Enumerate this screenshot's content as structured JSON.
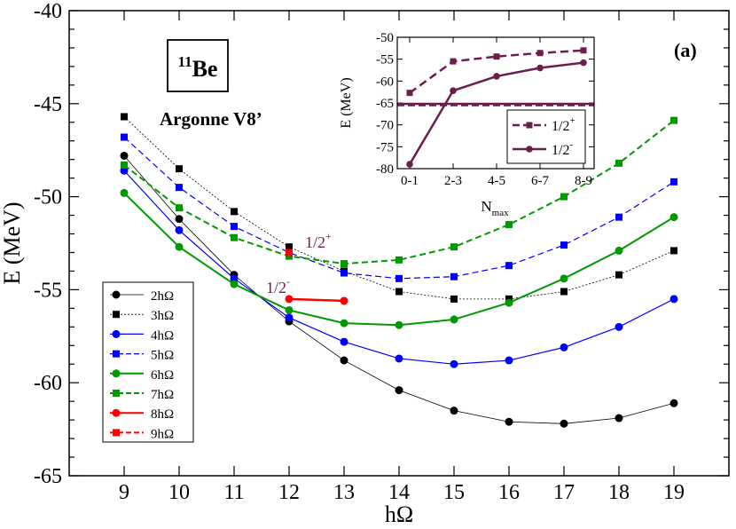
{
  "chart_data": [
    {
      "type": "line",
      "title": "",
      "xlabel": "hΩ",
      "ylabel": "E (MeV)",
      "xlim": [
        8,
        20
      ],
      "ylim": [
        -65,
        -40
      ],
      "xticks": [
        9,
        10,
        11,
        12,
        13,
        14,
        15,
        16,
        17,
        18,
        19
      ],
      "yticks": [
        -65,
        -60,
        -55,
        -50,
        -45,
        -40
      ],
      "panel_label": "(a)",
      "nucleus_label": {
        "mass": "11",
        "element": "Be"
      },
      "interaction_label": "Argonne V8’",
      "annotations": [
        {
          "base": "1/2",
          "sup": "+",
          "color": "#6b1e4e"
        },
        {
          "base": "1/2",
          "sup": "-",
          "color": "#6b1e4e"
        }
      ],
      "legend_position": "bottom-left",
      "series": [
        {
          "name": "2hΩ",
          "color": "#000000",
          "marker": "circle",
          "dashed": false,
          "width": 0.8,
          "x": [
            9,
            10,
            11,
            12,
            13,
            14,
            15,
            16,
            17,
            18,
            19
          ],
          "values": [
            -47.8,
            -51.2,
            -54.2,
            -56.7,
            -58.8,
            -60.4,
            -61.5,
            -62.1,
            -62.2,
            -61.9,
            -61.1
          ]
        },
        {
          "name": "3hΩ",
          "color": "#000000",
          "marker": "square",
          "dashed": true,
          "width": 0.8,
          "x": [
            9,
            10,
            11,
            12,
            13,
            14,
            15,
            16,
            17,
            18,
            19
          ],
          "values": [
            -45.7,
            -48.5,
            -50.8,
            -52.7,
            -54.0,
            -55.1,
            -55.5,
            -55.5,
            -55.1,
            -54.2,
            -52.9
          ]
        },
        {
          "name": "4hΩ",
          "color": "#0000ff",
          "marker": "circle",
          "dashed": false,
          "width": 1.2,
          "x": [
            9,
            10,
            11,
            12,
            13,
            14,
            15,
            16,
            17,
            18,
            19
          ],
          "values": [
            -48.6,
            -51.8,
            -54.4,
            -56.5,
            -57.8,
            -58.7,
            -59.0,
            -58.8,
            -58.1,
            -57.0,
            -55.5
          ]
        },
        {
          "name": "5hΩ",
          "color": "#0000ff",
          "marker": "square",
          "dashed": true,
          "width": 1.2,
          "x": [
            9,
            10,
            11,
            12,
            13,
            14,
            15,
            16,
            17,
            18,
            19
          ],
          "values": [
            -46.8,
            -49.5,
            -51.6,
            -53.0,
            -54.1,
            -54.4,
            -54.3,
            -53.7,
            -52.6,
            -51.1,
            -49.2
          ]
        },
        {
          "name": "6hΩ",
          "color": "#009900",
          "marker": "circle",
          "dashed": false,
          "width": 2,
          "x": [
            9,
            10,
            11,
            12,
            13,
            14,
            15,
            16,
            17,
            18,
            19
          ],
          "values": [
            -49.8,
            -52.7,
            -54.7,
            -56.1,
            -56.8,
            -56.9,
            -56.6,
            -55.7,
            -54.4,
            -52.9,
            -51.1
          ]
        },
        {
          "name": "7hΩ",
          "color": "#009900",
          "marker": "square",
          "dashed": true,
          "width": 2,
          "x": [
            9,
            10,
            11,
            12,
            13,
            14,
            15,
            16,
            17,
            18,
            19
          ],
          "values": [
            -48.3,
            -50.6,
            -52.2,
            -53.2,
            -53.6,
            -53.4,
            -52.7,
            -51.5,
            -50.0,
            -48.2,
            -45.9
          ]
        },
        {
          "name": "8hΩ",
          "color": "#ff0000",
          "marker": "circle",
          "dashed": false,
          "width": 2.5,
          "x": [
            12,
            13
          ],
          "values": [
            -55.5,
            -55.6
          ]
        },
        {
          "name": "9hΩ",
          "color": "#ff0000",
          "marker": "square",
          "dashed": true,
          "width": 2.5,
          "x": [
            12
          ],
          "values": [
            -53.0
          ]
        }
      ]
    },
    {
      "type": "line",
      "title": "",
      "xlabel": "N",
      "xlabel_sub": "max",
      "ylabel": "E (MeV)",
      "ylim": [
        -80,
        -50
      ],
      "categories": [
        "0-1",
        "2-3",
        "4-5",
        "6-7",
        "8-9"
      ],
      "yticks": [
        -80,
        -75,
        -70,
        -65,
        -60,
        -55,
        -50
      ],
      "legend_position": "bottom-right",
      "series": [
        {
          "name": "1/2",
          "sup": "+",
          "color": "#6b1e4e",
          "marker": "square",
          "dashed": true,
          "values": [
            -62.7,
            -55.5,
            -54.4,
            -53.6,
            -53.0
          ]
        },
        {
          "name": "1/2",
          "sup": "-",
          "color": "#6b1e4e",
          "marker": "circle",
          "dashed": false,
          "values": [
            -79.0,
            -62.2,
            -58.9,
            -57.0,
            -55.8
          ]
        }
      ],
      "reference_lines": [
        {
          "value": -65.2,
          "dashed": false,
          "color": "#6b1e4e"
        },
        {
          "value": -65.5,
          "dashed": true,
          "color": "#6b1e4e"
        }
      ]
    }
  ]
}
